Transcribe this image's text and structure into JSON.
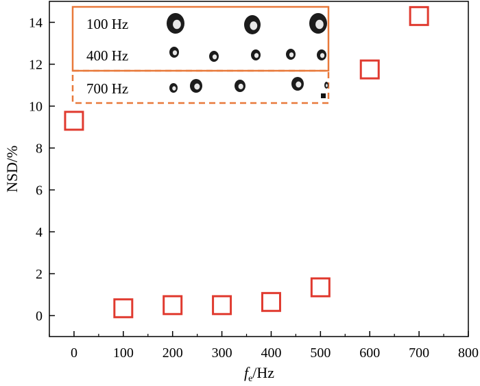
{
  "chart_data": {
    "type": "scatter",
    "ylabel": "NSD/%",
    "xlabel_main": "f",
    "xlabel_sub": "e",
    "xlabel_unit": "/Hz",
    "xlim": [
      -50,
      800
    ],
    "ylim": [
      -1,
      15
    ],
    "xticks": [
      0,
      100,
      200,
      300,
      400,
      500,
      600,
      700,
      800
    ],
    "yticks": [
      0,
      2,
      4,
      6,
      8,
      10,
      12,
      14
    ],
    "grid": false,
    "marker": "open-square",
    "marker_color": "#e03a2f",
    "points": [
      {
        "x": 0,
        "y": 9.3
      },
      {
        "x": 100,
        "y": 0.35
      },
      {
        "x": 200,
        "y": 0.5
      },
      {
        "x": 300,
        "y": 0.5
      },
      {
        "x": 400,
        "y": 0.65
      },
      {
        "x": 500,
        "y": 1.35
      },
      {
        "x": 600,
        "y": 11.75
      },
      {
        "x": 700,
        "y": 14.3
      }
    ],
    "inset": {
      "border_color": "#e8793a",
      "rows": [
        {
          "label": "100 Hz",
          "style": "solid"
        },
        {
          "label": "400 Hz",
          "style": "solid"
        },
        {
          "label": "700 Hz",
          "style": "dashed"
        }
      ]
    }
  }
}
